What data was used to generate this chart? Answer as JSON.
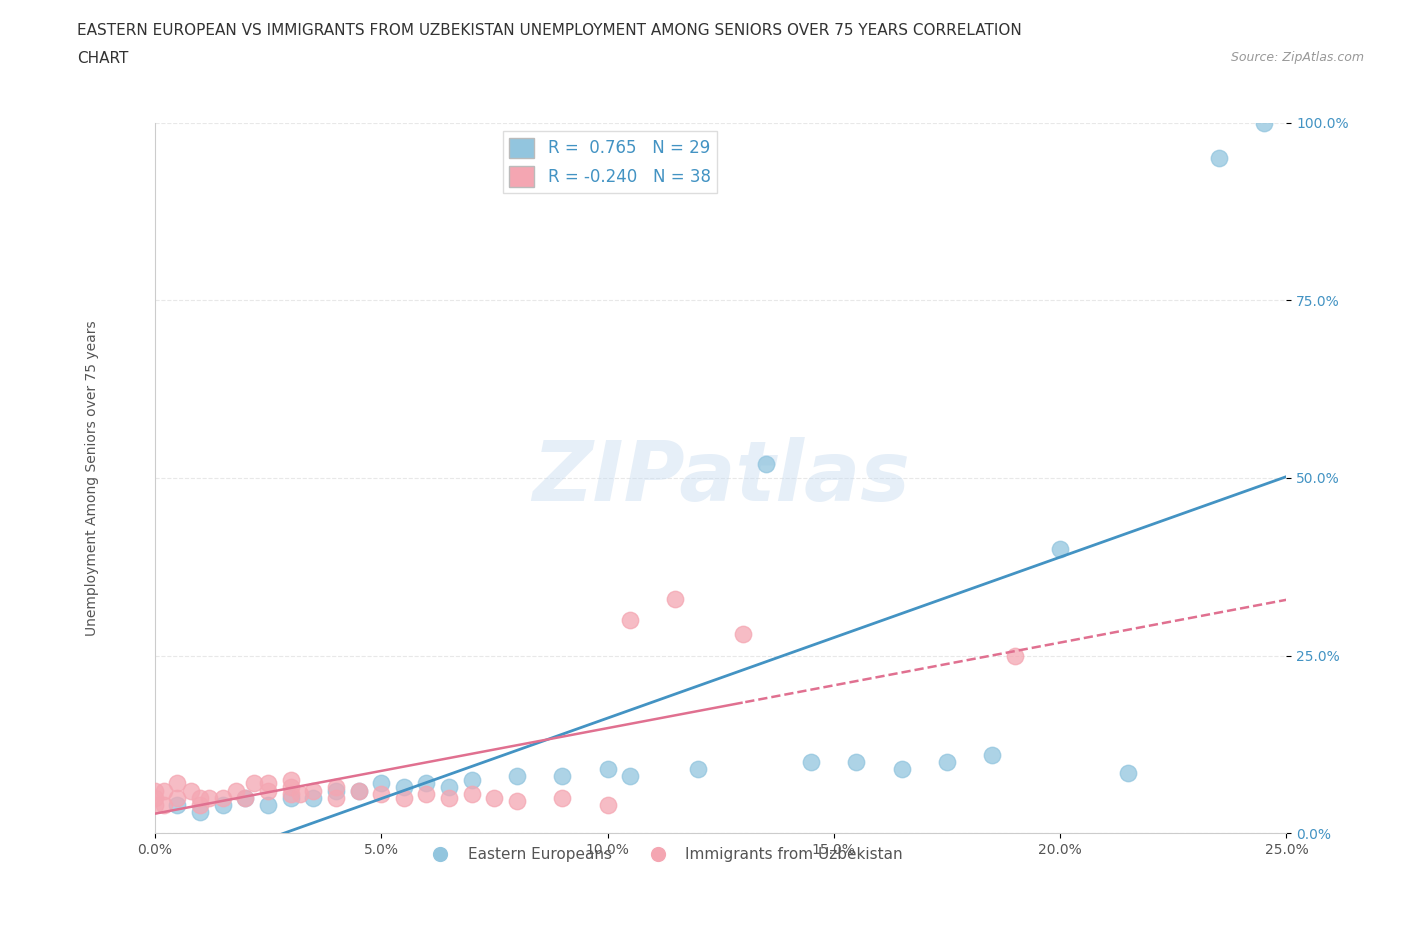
{
  "title_line1": "EASTERN EUROPEAN VS IMMIGRANTS FROM UZBEKISTAN UNEMPLOYMENT AMONG SENIORS OVER 75 YEARS CORRELATION",
  "title_line2": "CHART",
  "source": "Source: ZipAtlas.com",
  "ylabel": "Unemployment Among Seniors over 75 years",
  "xlim": [
    0,
    0.25
  ],
  "ylim": [
    0,
    1.0
  ],
  "xticks": [
    0.0,
    0.05,
    0.1,
    0.15,
    0.2,
    0.25
  ],
  "yticks": [
    0.0,
    0.25,
    0.5,
    0.75,
    1.0
  ],
  "xticklabels": [
    "0.0%",
    "5.0%",
    "10.0%",
    "15.0%",
    "20.0%",
    "25.0%"
  ],
  "yticklabels": [
    "0.0%",
    "25.0%",
    "50.0%",
    "75.0%",
    "100.0%"
  ],
  "blue_R": 0.765,
  "blue_N": 29,
  "pink_R": -0.24,
  "pink_N": 38,
  "blue_color": "#92C5DE",
  "pink_color": "#F4A6B2",
  "blue_line_color": "#4393C3",
  "pink_line_color": "#E07090",
  "watermark": "ZIPatlas",
  "blue_scatter_x": [
    0.005,
    0.01,
    0.015,
    0.02,
    0.025,
    0.03,
    0.035,
    0.04,
    0.045,
    0.05,
    0.055,
    0.06,
    0.065,
    0.07,
    0.08,
    0.09,
    0.1,
    0.105,
    0.12,
    0.135,
    0.145,
    0.155,
    0.165,
    0.175,
    0.185,
    0.2,
    0.215,
    0.235,
    0.245
  ],
  "blue_scatter_y": [
    0.04,
    0.03,
    0.04,
    0.05,
    0.04,
    0.05,
    0.05,
    0.06,
    0.06,
    0.07,
    0.065,
    0.07,
    0.065,
    0.075,
    0.08,
    0.08,
    0.09,
    0.08,
    0.09,
    0.52,
    0.1,
    0.1,
    0.09,
    0.1,
    0.11,
    0.4,
    0.085,
    0.95,
    1.0
  ],
  "pink_scatter_x": [
    0.0,
    0.0,
    0.0,
    0.002,
    0.002,
    0.005,
    0.005,
    0.008,
    0.01,
    0.01,
    0.012,
    0.015,
    0.018,
    0.02,
    0.022,
    0.025,
    0.025,
    0.03,
    0.03,
    0.03,
    0.032,
    0.035,
    0.04,
    0.04,
    0.045,
    0.05,
    0.055,
    0.06,
    0.065,
    0.07,
    0.075,
    0.08,
    0.09,
    0.1,
    0.105,
    0.115,
    0.13,
    0.19
  ],
  "pink_scatter_y": [
    0.04,
    0.05,
    0.06,
    0.04,
    0.06,
    0.05,
    0.07,
    0.06,
    0.04,
    0.05,
    0.05,
    0.05,
    0.06,
    0.05,
    0.07,
    0.06,
    0.07,
    0.055,
    0.065,
    0.075,
    0.055,
    0.06,
    0.05,
    0.065,
    0.06,
    0.055,
    0.05,
    0.055,
    0.05,
    0.055,
    0.05,
    0.045,
    0.05,
    0.04,
    0.3,
    0.33,
    0.28,
    0.25
  ],
  "background_color": "#FFFFFF",
  "grid_color": "#E8E8E8",
  "legend_label_blue": "Eastern Europeans",
  "legend_label_pink": "Immigrants from Uzbekistan",
  "title_fontsize": 11,
  "axis_label_fontsize": 10,
  "tick_fontsize": 10
}
